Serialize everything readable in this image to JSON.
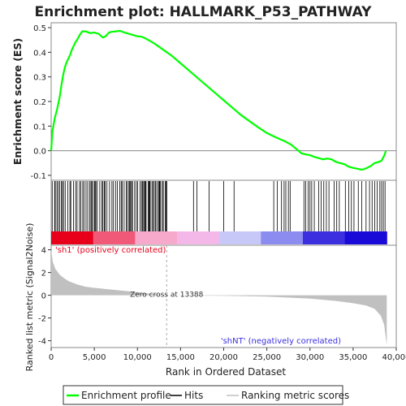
{
  "chart_data": {
    "type": "line",
    "title": "Enrichment plot: HALLMARK_P53_PATHWAY",
    "xlabel": "Rank in Ordered Dataset",
    "xlim": [
      0,
      40000
    ],
    "x_ticks": [
      "0",
      "5,000",
      "10,000",
      "15,000",
      "20,000",
      "25,000",
      "30,000",
      "35,000",
      "40,000"
    ],
    "x_tick_values": [
      0,
      5000,
      10000,
      15000,
      20000,
      25000,
      30000,
      35000,
      40000
    ],
    "es_panel": {
      "ylabel": "Enrichment score (ES)",
      "ylim": [
        -0.12,
        0.52
      ],
      "y_ticks": [
        "-0.1",
        "0.0",
        "0.1",
        "0.2",
        "0.3",
        "0.4",
        "0.5"
      ],
      "y_tick_values": [
        -0.1,
        0.0,
        0.1,
        0.2,
        0.3,
        0.4,
        0.5
      ],
      "color": "#00ff00",
      "series": [
        {
          "name": "Enrichment profile",
          "x": [
            0,
            150,
            400,
            700,
            1000,
            1200,
            1400,
            1600,
            1800,
            2000,
            2200,
            2400,
            2600,
            2800,
            3000,
            3300,
            3600,
            4000,
            4500,
            5000,
            5500,
            6000,
            6300,
            6700,
            7000,
            7500,
            8000,
            8500,
            9000,
            9500,
            10000,
            10500,
            11000,
            12000,
            13000,
            14000,
            15000,
            16000,
            17000,
            18000,
            19000,
            20000,
            21000,
            22000,
            23000,
            24000,
            25000,
            26000,
            27000,
            27800,
            28500,
            29000,
            29500,
            30000,
            30500,
            31000,
            31500,
            32000,
            32500,
            33000,
            33500,
            34000,
            34500,
            35000,
            35500,
            36000,
            36500,
            37000,
            37500,
            38000,
            38300,
            38600,
            38800
          ],
          "y": [
            0.0,
            0.08,
            0.13,
            0.17,
            0.22,
            0.27,
            0.31,
            0.34,
            0.36,
            0.375,
            0.39,
            0.41,
            0.425,
            0.44,
            0.45,
            0.47,
            0.485,
            0.485,
            0.478,
            0.48,
            0.475,
            0.46,
            0.465,
            0.48,
            0.483,
            0.485,
            0.487,
            0.48,
            0.475,
            0.47,
            0.465,
            0.463,
            0.455,
            0.435,
            0.41,
            0.385,
            0.355,
            0.325,
            0.295,
            0.265,
            0.235,
            0.205,
            0.175,
            0.145,
            0.12,
            0.095,
            0.072,
            0.055,
            0.04,
            0.025,
            0.005,
            -0.01,
            -0.015,
            -0.018,
            -0.025,
            -0.03,
            -0.035,
            -0.032,
            -0.035,
            -0.045,
            -0.05,
            -0.055,
            -0.065,
            -0.07,
            -0.073,
            -0.077,
            -0.072,
            -0.063,
            -0.05,
            -0.045,
            -0.04,
            -0.02,
            0.0
          ]
        }
      ]
    },
    "hits_panel": {
      "hits_dense_start": 0,
      "hits_dense_end": 13400,
      "hits_sparse": [
        16500,
        16900,
        18300,
        20000,
        21200,
        25800,
        26200,
        26700,
        27000,
        27200,
        27500,
        27700,
        29300,
        29500,
        29800,
        30000,
        30200,
        30500,
        31000,
        31300,
        31600,
        31900,
        32200,
        32800,
        33100,
        33400,
        34100,
        34500,
        34800,
        35100,
        35600,
        36000,
        36500,
        36900,
        37200,
        37500,
        37800,
        38100,
        38300,
        38500,
        38700
      ],
      "ranking_bar_colors": [
        "#e8001a",
        "#f05a78",
        "#f7a9cc",
        "#f4b8e8",
        "#c8c8f8",
        "#8c8cf0",
        "#3b2fe0",
        "#1a0ad8"
      ]
    },
    "metric_panel": {
      "ylabel": "Ranked list metric (Signal2Noise)",
      "ylim": [
        -4.6,
        4.4
      ],
      "y_ticks": [
        "-4",
        "-2",
        "0",
        "2",
        "4"
      ],
      "y_tick_values": [
        -4,
        -2,
        0,
        2,
        4
      ],
      "x": [
        0,
        200,
        500,
        1000,
        1500,
        2000,
        3000,
        4000,
        5000,
        7000,
        9000,
        11000,
        13388,
        20000,
        25000,
        30000,
        33000,
        35000,
        36500,
        37500,
        38200,
        38600,
        38900
      ],
      "y": [
        4.0,
        2.9,
        2.3,
        1.8,
        1.5,
        1.25,
        0.95,
        0.75,
        0.65,
        0.5,
        0.35,
        0.18,
        0.0,
        -0.05,
        -0.12,
        -0.3,
        -0.5,
        -0.7,
        -0.9,
        -1.2,
        -1.8,
        -2.6,
        -4.4
      ],
      "zero_cross_label": "Zero cross at 13388",
      "zero_cross_x": 13388,
      "pos_label": "'sh1' (positively correlated)",
      "neg_label": "'shNT' (negatively correlated)",
      "pos_label_color": "#e8001a",
      "neg_label_color": "#3b2fe0"
    },
    "legend": {
      "placement": "bottom",
      "entries": [
        {
          "name": "Enrichment profile",
          "color": "#00ff00"
        },
        {
          "name": "Hits",
          "color": "#000000"
        },
        {
          "name": "Ranking metric scores",
          "color": "#c0c0c0"
        }
      ]
    }
  }
}
